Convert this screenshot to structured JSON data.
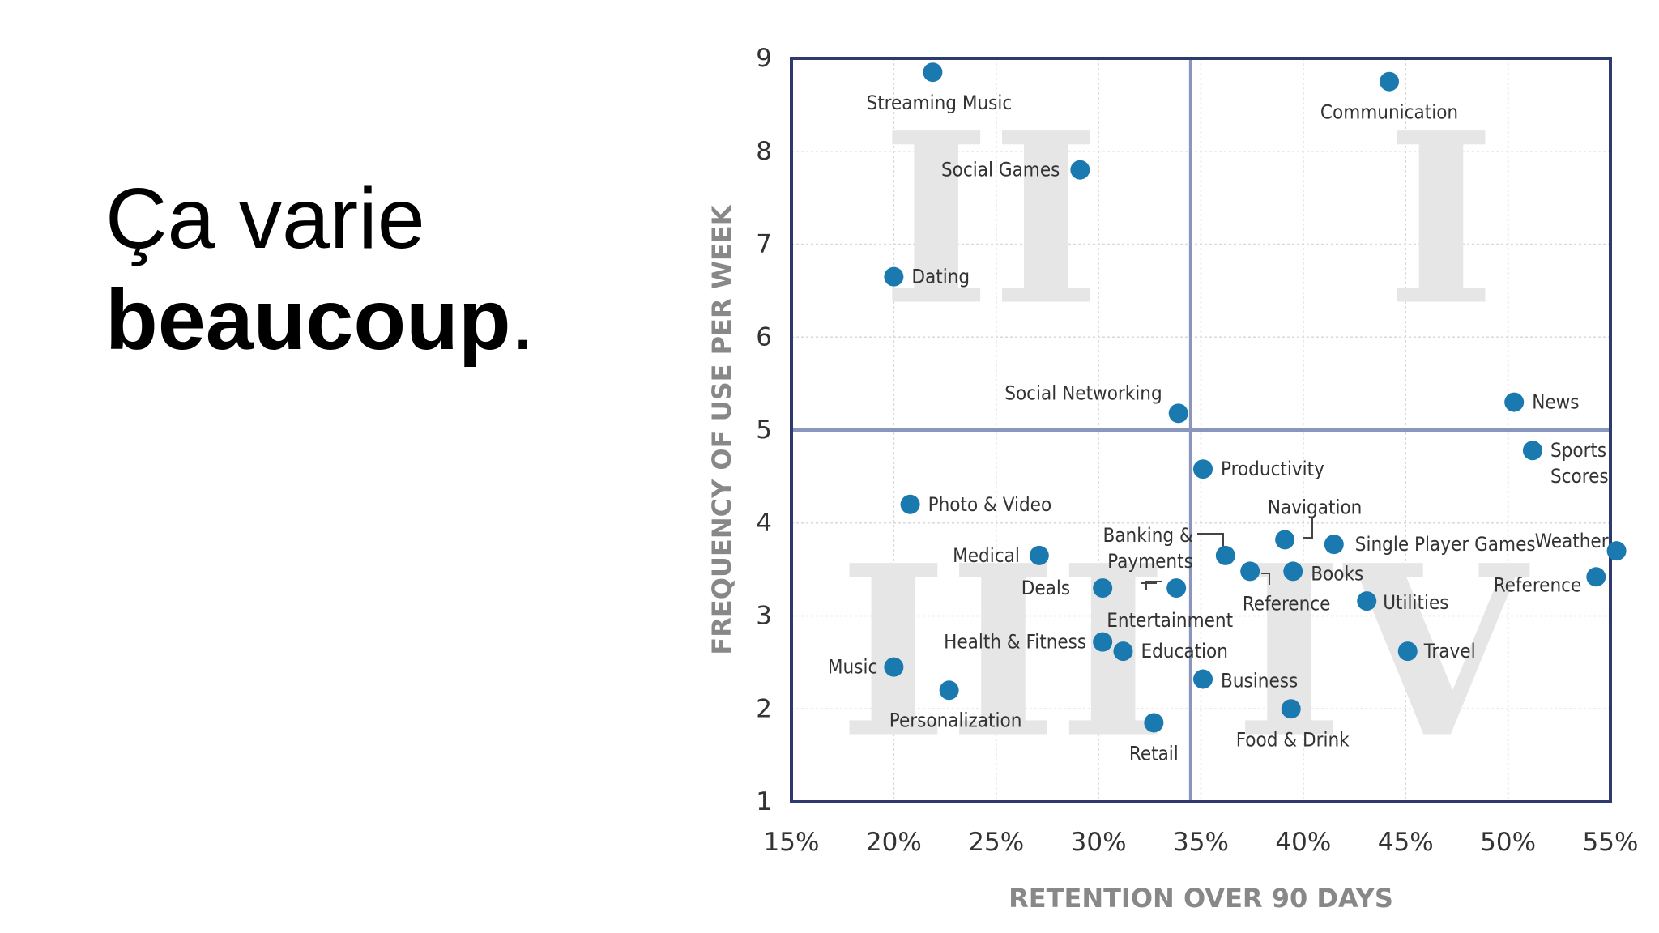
{
  "slide": {
    "title_line1": "Ça varie",
    "title_line2_bold": "beaucoup",
    "title_line2_end": "."
  },
  "colors": {
    "point": "#1a7ab0",
    "frame": "#2e3a6e",
    "quadrant_line": "#8a96bc",
    "grid": "#d9d9d9",
    "roman": "#e6e6e6"
  },
  "chart_data": {
    "type": "scatter",
    "xlabel": "RETENTION OVER 90 DAYS",
    "ylabel": "FREQUENCY OF USE PER WEEK",
    "xlim": [
      15,
      55
    ],
    "ylim": [
      1,
      9
    ],
    "x_ticks": [
      "15%",
      "20%",
      "25%",
      "30%",
      "35%",
      "40%",
      "45%",
      "50%",
      "55%"
    ],
    "y_ticks": [
      "1",
      "2",
      "3",
      "4",
      "5",
      "6",
      "7",
      "8",
      "9"
    ],
    "quadrant_lines": {
      "x": 34.5,
      "y": 5
    },
    "quadrants": [
      "I",
      "II",
      "III",
      "IV"
    ],
    "points": [
      {
        "label": "Streaming Music",
        "x": 21.9,
        "y": 8.85
      },
      {
        "label": "Communication",
        "x": 44.2,
        "y": 8.75
      },
      {
        "label": "Social Games",
        "x": 29.1,
        "y": 7.8
      },
      {
        "label": "Dating",
        "x": 20.0,
        "y": 6.65
      },
      {
        "label": "Social Networking",
        "x": 33.9,
        "y": 5.18
      },
      {
        "label": "News",
        "x": 50.3,
        "y": 5.3
      },
      {
        "label": "Sports Scores",
        "x": 51.2,
        "y": 4.78
      },
      {
        "label": "Productivity",
        "x": 35.1,
        "y": 4.58
      },
      {
        "label": "Photo & Video",
        "x": 20.8,
        "y": 4.2
      },
      {
        "label": "Navigation",
        "x": 39.1,
        "y": 3.82
      },
      {
        "label": "Single Player Games",
        "x": 41.5,
        "y": 3.77
      },
      {
        "label": "Weather",
        "x": 55.3,
        "y": 3.7
      },
      {
        "label": "Medical",
        "x": 27.1,
        "y": 3.65
      },
      {
        "label": "Banking & Payments",
        "x": 36.2,
        "y": 3.65
      },
      {
        "label": "Books",
        "x": 39.5,
        "y": 3.48
      },
      {
        "label": "Reference",
        "x": 37.4,
        "y": 3.48
      },
      {
        "label": "Reference",
        "x": 54.3,
        "y": 3.42
      },
      {
        "label": "Deals",
        "x": 30.2,
        "y": 3.3
      },
      {
        "label": "Entertainment",
        "x": 33.8,
        "y": 3.3
      },
      {
        "label": "Utilities",
        "x": 43.1,
        "y": 3.16
      },
      {
        "label": "Health & Fitness",
        "x": 30.2,
        "y": 2.72
      },
      {
        "label": "Education",
        "x": 31.2,
        "y": 2.62
      },
      {
        "label": "Travel",
        "x": 45.1,
        "y": 2.62
      },
      {
        "label": "Music",
        "x": 20.0,
        "y": 2.45
      },
      {
        "label": "Business",
        "x": 35.1,
        "y": 2.32
      },
      {
        "label": "Personalization",
        "x": 22.7,
        "y": 2.2
      },
      {
        "label": "Food & Drink",
        "x": 39.4,
        "y": 2.0
      },
      {
        "label": "Retail",
        "x": 32.7,
        "y": 1.85
      }
    ]
  }
}
